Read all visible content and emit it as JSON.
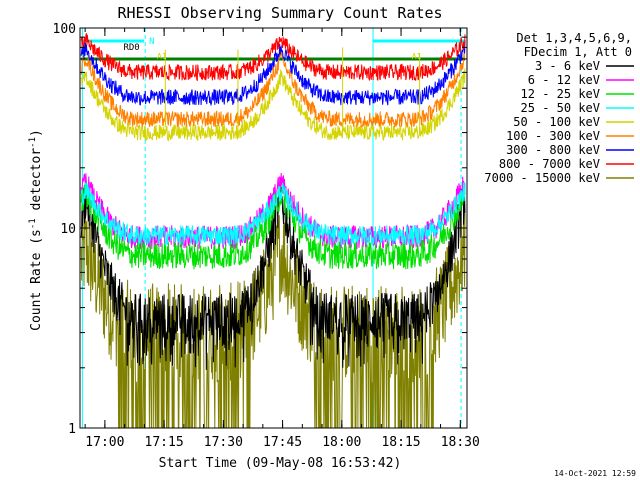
{
  "chart_data": {
    "type": "line",
    "title": "RHESSI Observing Summary Count Rates",
    "xlabel": "Start Time (09-May-08 16:53:42)",
    "ylabel_main": "Count Rate (s",
    "ylabel_sup": "-1",
    "ylabel_rest": " detector",
    "ylabel_sup2": "-1",
    "ylabel_close": ")",
    "y_scale": "log",
    "ylim": [
      1,
      100
    ],
    "xlim_minutes": [
      0,
      98
    ],
    "y_ticks": [
      "1",
      "10",
      "100"
    ],
    "x_ticks": [
      {
        "label": "17:00",
        "min": 6.3
      },
      {
        "label": "17:15",
        "min": 21.3
      },
      {
        "label": "17:30",
        "min": 36.3
      },
      {
        "label": "17:45",
        "min": 51.3
      },
      {
        "label": "18:00",
        "min": 66.3
      },
      {
        "label": "18:15",
        "min": 81.3
      },
      {
        "label": "18:30",
        "min": 96.3
      }
    ],
    "legend_header": [
      "Det 1,3,4,5,6,9,",
      "FDecim 1, Att 0"
    ],
    "legend_position": "right",
    "series": [
      {
        "name": "3 - 6 keV",
        "color": "#000000",
        "low": 3.6,
        "high": 14.5,
        "noise": 0.12
      },
      {
        "name": "6 - 12 keV",
        "color": "#ff00ff",
        "low": 9.0,
        "high": 17.0,
        "noise": 0.06
      },
      {
        "name": "12 - 25 keV",
        "color": "#00e000",
        "low": 7.3,
        "high": 15.0,
        "noise": 0.07
      },
      {
        "name": "25 - 50 keV",
        "color": "#00ffff",
        "low": 9.2,
        "high": 15.5,
        "noise": 0.05
      },
      {
        "name": "50 - 100 keV",
        "color": "#d4d400",
        "low": 30.0,
        "high": 58.0,
        "noise": 0.04
      },
      {
        "name": "100 - 300 keV",
        "color": "#ff8000",
        "low": 35.0,
        "high": 72.0,
        "noise": 0.04
      },
      {
        "name": "300 - 800 keV",
        "color": "#0000ff",
        "low": 45.0,
        "high": 80.0,
        "noise": 0.04
      },
      {
        "name": "800 - 7000 keV",
        "color": "#ff0000",
        "low": 60.0,
        "high": 87.0,
        "noise": 0.04
      },
      {
        "name": "7000 - 15000 keV",
        "color": "#808000",
        "low": 3.0,
        "high": 8.0,
        "noise": 0.25
      }
    ],
    "annotations": [
      {
        "text": "N",
        "color": "#00ffff"
      },
      {
        "text": "RD0",
        "color": "#000000"
      },
      {
        "text": "A1",
        "color": "#d4d400"
      },
      {
        "text": "A1",
        "color": "#d4d400"
      }
    ],
    "saa_color": "#008000",
    "night_color": "#00ffff"
  },
  "footer": {
    "date": "14-Oct-2021 12:59"
  }
}
